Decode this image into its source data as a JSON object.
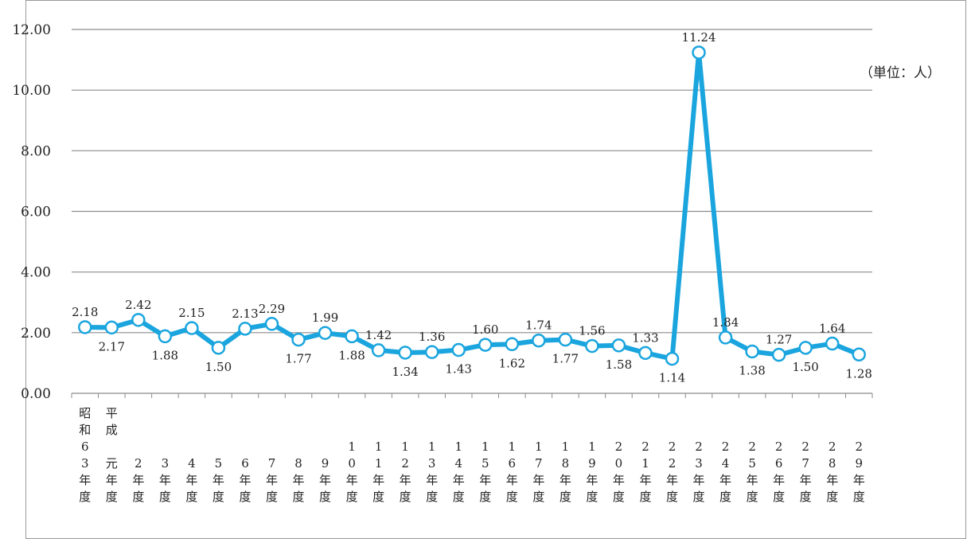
{
  "chart_data": {
    "type": "line",
    "unit_label": "（単位：人）",
    "categories": [
      "昭和63年度",
      "平成元年度",
      "2年度",
      "3年度",
      "4年度",
      "5年度",
      "6年度",
      "7年度",
      "8年度",
      "9年度",
      "10年度",
      "11年度",
      "12年度",
      "13年度",
      "14年度",
      "15年度",
      "16年度",
      "17年度",
      "18年度",
      "19年度",
      "20年度",
      "21年度",
      "22年度",
      "23年度",
      "24年度",
      "25年度",
      "26年度",
      "27年度",
      "28年度",
      "29年度"
    ],
    "category_columns": [
      [
        "昭",
        "和",
        "6",
        "3",
        "年",
        "度"
      ],
      [
        "平",
        "成",
        "",
        "元",
        "年",
        "度"
      ],
      [
        "",
        "",
        "",
        "2",
        "年",
        "度"
      ],
      [
        "",
        "",
        "",
        "3",
        "年",
        "度"
      ],
      [
        "",
        "",
        "",
        "4",
        "年",
        "度"
      ],
      [
        "",
        "",
        "",
        "5",
        "年",
        "度"
      ],
      [
        "",
        "",
        "",
        "6",
        "年",
        "度"
      ],
      [
        "",
        "",
        "",
        "7",
        "年",
        "度"
      ],
      [
        "",
        "",
        "",
        "8",
        "年",
        "度"
      ],
      [
        "",
        "",
        "",
        "9",
        "年",
        "度"
      ],
      [
        "",
        "",
        "1",
        "0",
        "年",
        "度"
      ],
      [
        "",
        "",
        "1",
        "1",
        "年",
        "度"
      ],
      [
        "",
        "",
        "1",
        "2",
        "年",
        "度"
      ],
      [
        "",
        "",
        "1",
        "3",
        "年",
        "度"
      ],
      [
        "",
        "",
        "1",
        "4",
        "年",
        "度"
      ],
      [
        "",
        "",
        "1",
        "5",
        "年",
        "度"
      ],
      [
        "",
        "",
        "1",
        "6",
        "年",
        "度"
      ],
      [
        "",
        "",
        "1",
        "7",
        "年",
        "度"
      ],
      [
        "",
        "",
        "1",
        "8",
        "年",
        "度"
      ],
      [
        "",
        "",
        "1",
        "9",
        "年",
        "度"
      ],
      [
        "",
        "",
        "2",
        "0",
        "年",
        "度"
      ],
      [
        "",
        "",
        "2",
        "1",
        "年",
        "度"
      ],
      [
        "",
        "",
        "2",
        "2",
        "年",
        "度"
      ],
      [
        "",
        "",
        "2",
        "3",
        "年",
        "度"
      ],
      [
        "",
        "",
        "2",
        "4",
        "年",
        "度"
      ],
      [
        "",
        "",
        "2",
        "5",
        "年",
        "度"
      ],
      [
        "",
        "",
        "2",
        "6",
        "年",
        "度"
      ],
      [
        "",
        "",
        "2",
        "7",
        "年",
        "度"
      ],
      [
        "",
        "",
        "2",
        "8",
        "年",
        "度"
      ],
      [
        "",
        "",
        "2",
        "9",
        "年",
        "度"
      ]
    ],
    "values": [
      2.18,
      2.17,
      2.42,
      1.88,
      2.15,
      1.5,
      2.13,
      2.29,
      1.77,
      1.99,
      1.88,
      1.42,
      1.34,
      1.36,
      1.43,
      1.6,
      1.62,
      1.74,
      1.77,
      1.56,
      1.58,
      1.33,
      1.14,
      11.24,
      1.84,
      1.38,
      1.27,
      1.5,
      1.64,
      1.28
    ],
    "value_labels": [
      "2.18",
      "2.17",
      "2.42",
      "1.88",
      "2.15",
      "1.50",
      "2.13",
      "2.29",
      "1.77",
      "1.99",
      "1.88",
      "1.42",
      "1.34",
      "1.36",
      "1.43",
      "1.60",
      "1.62",
      "1.74",
      "1.77",
      "1.56",
      "1.58",
      "1.33",
      "1.14",
      "11.24",
      "1.84",
      "1.38",
      "1.27",
      "1.50",
      "1.64",
      "1.28"
    ],
    "label_position": [
      "above",
      "below",
      "above",
      "below",
      "above",
      "below",
      "above",
      "above",
      "below",
      "above",
      "below",
      "above",
      "below",
      "above",
      "below",
      "above",
      "below",
      "above",
      "below",
      "above",
      "below",
      "above",
      "below",
      "above",
      "above",
      "below",
      "above",
      "below",
      "above",
      "below"
    ],
    "y_ticks": [
      "0.00",
      "2.00",
      "4.00",
      "6.00",
      "8.00",
      "10.00",
      "12.00"
    ],
    "ylim": [
      0,
      12
    ],
    "grid": true,
    "colors": {
      "line": "#1aa5de",
      "marker_fill": "#ffffff",
      "grid": "#8c8c8c",
      "frame": "#9a9a9a"
    }
  }
}
